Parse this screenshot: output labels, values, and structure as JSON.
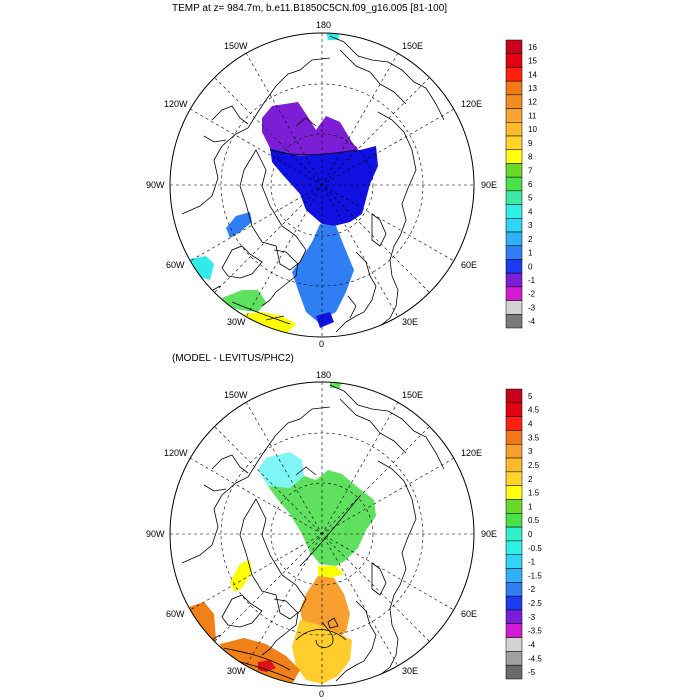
{
  "colors": {
    "purple": "#7b1ed6",
    "blue": "#1010e0",
    "mid_blue": "#2f7ff2",
    "cyan": "#33eaea",
    "light_cyan": "#7ff5f5",
    "green": "#5fe05f",
    "yellow": "#ffff00",
    "orange": "#f7a030",
    "dark_orange": "#f08018",
    "gold": "#ffce2c",
    "red": "#e0101a",
    "magenta": "#d21ad2",
    "grey": "#d2d2d2"
  },
  "top_panel": {
    "title": "TEMP at z= 984.7m, b.e11.B1850C5CN.f09_g16.005 [81-100]",
    "lon_labels": {
      "top": "180",
      "bottom": "0",
      "left": "90W",
      "right": "90E",
      "upper_left_1": "150W",
      "upper_left_2": "120W",
      "upper_right_1": "150E",
      "upper_right_2": "120E",
      "lower_left_1": "60W",
      "lower_left_2": "30W",
      "lower_right_1": "60E",
      "lower_right_2": "30E"
    },
    "colorbar": {
      "labels": [
        "16",
        "15",
        "14",
        "13",
        "12",
        "11",
        "10",
        "9",
        "8",
        "7",
        "6",
        "5",
        "4",
        "3",
        "2",
        "1",
        "0",
        "-1",
        "-2",
        "-3",
        "-4"
      ],
      "swatches": [
        "#c8001e",
        "#e00010",
        "#ff2010",
        "#f07818",
        "#f08e22",
        "#f7a430",
        "#fbbc2c",
        "#ffd42c",
        "#ffff10",
        "#6ad82a",
        "#4ae04a",
        "#40e8a8",
        "#30f0e6",
        "#30d4f4",
        "#30b0f6",
        "#2f7ff2",
        "#1a3cf0",
        "#7b1ed6",
        "#d21ad2",
        "#d2d2d2",
        "#7a7a7a"
      ]
    },
    "regions": [
      {
        "name": "region-purple-upper",
        "color": "#7b1ed6",
        "value": "0 to -1"
      },
      {
        "name": "region-blue-central",
        "color": "#1010e0",
        "value": "0 to 1"
      },
      {
        "name": "region-midblue-atlantic",
        "color": "#2f7ff2",
        "value": "1 to 2"
      },
      {
        "name": "region-midblue-baffin",
        "color": "#2f7ff2",
        "value": "1 to 2"
      },
      {
        "name": "region-cyan-labrador",
        "color": "#33eaea",
        "value": "5 to 6"
      },
      {
        "name": "region-green-iceland",
        "color": "#5fe05f",
        "value": "6 to 7"
      },
      {
        "name": "region-yellow-southeast",
        "color": "#ffff00",
        "value": "8 to 9"
      },
      {
        "name": "region-blue-ireland",
        "color": "#1010e0",
        "value": "0 to 1"
      },
      {
        "name": "region-cyan-bering",
        "color": "#33eaea",
        "value": "5 to 6"
      }
    ]
  },
  "bottom_panel": {
    "title": "(MODEL - LEVITUS/PHC2)",
    "lon_labels": {
      "top": "180",
      "bottom": "0",
      "left": "90W",
      "right": "90E",
      "upper_left_1": "150W",
      "upper_left_2": "120W",
      "upper_right_1": "150E",
      "upper_right_2": "120E",
      "lower_left_1": "60W",
      "lower_left_2": "30W",
      "lower_right_1": "60E",
      "lower_right_2": "30E"
    },
    "colorbar": {
      "labels": [
        "5",
        "4.5",
        "4",
        "3.5",
        "3",
        "2.5",
        "2",
        "1.5",
        "1",
        "0.5",
        "0",
        "-0.5",
        "-1",
        "-1.5",
        "-2",
        "-2.5",
        "-3",
        "-3.5",
        "-4",
        "-4.5",
        "-5"
      ],
      "swatches": [
        "#c8001e",
        "#e00010",
        "#ff2010",
        "#f07818",
        "#f7a030",
        "#fbbc2c",
        "#ffd42c",
        "#ffff10",
        "#6ad82a",
        "#4ae04a",
        "#30f0c8",
        "#30f0e6",
        "#30d4f4",
        "#30b0f6",
        "#2f7ff2",
        "#1a3cf0",
        "#7b1ed6",
        "#d21ad2",
        "#d2d2d2",
        "#a0a0a0",
        "#6a6a6a"
      ]
    },
    "regions": [
      {
        "name": "region-lightcyan-upper",
        "color": "#7ff5f5",
        "value": "-0.5 to 0"
      },
      {
        "name": "region-green-central",
        "color": "#5fe05f",
        "value": "0.5 to 1"
      },
      {
        "name": "region-yellow-strait",
        "color": "#ffff00",
        "value": "1 to 1.5"
      },
      {
        "name": "region-orange-atlantic",
        "color": "#f7a030",
        "value": "2.5 to 3"
      },
      {
        "name": "region-gold-atlantic",
        "color": "#ffce2c",
        "value": "2 to 2.5"
      },
      {
        "name": "region-yellow-baffin",
        "color": "#ffff00",
        "value": "1 to 1.5"
      },
      {
        "name": "region-orange-labrador",
        "color": "#f08018",
        "value": "3 to 3.5"
      },
      {
        "name": "region-orange-southeast",
        "color": "#f08018",
        "value": "3 to 3.5"
      },
      {
        "name": "region-red-hotspot",
        "color": "#e0101a",
        "value": "4 to 4.5"
      },
      {
        "name": "region-green-bering",
        "color": "#5fe05f",
        "value": "0.5 to 1"
      }
    ]
  }
}
